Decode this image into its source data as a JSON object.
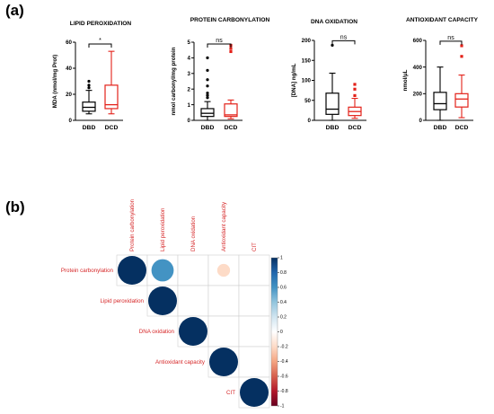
{
  "panel_labels": {
    "a": "(a)",
    "b": "(b)"
  },
  "colors": {
    "dbd": "#000000",
    "dcd": "#e32119",
    "corr_pos": "#053061",
    "corr_neg": "#67001f"
  },
  "chart_data": [
    {
      "type": "boxplot",
      "title": "LIPID PEROXIDATION",
      "ylabel": "MDA (nmol/mg Prot)",
      "ylim": [
        0,
        60
      ],
      "yticks": [
        0,
        20,
        40,
        60
      ],
      "categories": [
        "DBD",
        "DCD"
      ],
      "significance": "*",
      "series": [
        {
          "name": "DBD",
          "min": 5,
          "q1": 7,
          "median": 10,
          "q3": 14,
          "max": 23,
          "outliers": [
            30,
            27,
            25
          ]
        },
        {
          "name": "DCD",
          "min": 5,
          "q1": 9,
          "median": 12,
          "q3": 27,
          "max": 53,
          "outliers": []
        }
      ]
    },
    {
      "type": "boxplot",
      "title": "PROTEIN CARBONYLATION",
      "ylabel": "nmol carbonyl/mg protein",
      "ylim": [
        0,
        5
      ],
      "yticks": [
        0,
        1,
        2,
        3,
        4,
        5
      ],
      "categories": [
        "DBD",
        "DCD"
      ],
      "significance": "ns",
      "series": [
        {
          "name": "DBD",
          "min": 0,
          "q1": 0.25,
          "median": 0.45,
          "q3": 0.75,
          "max": 1.2,
          "outliers": [
            1.45,
            1.6,
            1.75,
            2.2,
            2.6,
            3.2,
            4.0
          ]
        },
        {
          "name": "DCD",
          "min": 0.1,
          "q1": 0.25,
          "median": 0.35,
          "q3": 1.05,
          "max": 1.3,
          "outliers": [
            4.4,
            4.6,
            4.8
          ]
        }
      ]
    },
    {
      "type": "boxplot",
      "title": "DNA OXIDATION",
      "ylabel": "[DNA] ng/mL",
      "ylim": [
        0,
        200
      ],
      "yticks": [
        0,
        50,
        100,
        150,
        200
      ],
      "categories": [
        "DBD",
        "DCD"
      ],
      "significance": "ns",
      "series": [
        {
          "name": "DBD",
          "min": 0,
          "q1": 15,
          "median": 28,
          "q3": 68,
          "max": 118,
          "outliers": [
            188
          ]
        },
        {
          "name": "DCD",
          "min": 5,
          "q1": 12,
          "median": 22,
          "q3": 33,
          "max": 55,
          "outliers": [
            62,
            78,
            90
          ]
        }
      ]
    },
    {
      "type": "boxplot",
      "title": "ANTIOXIDANT CAPACITY",
      "ylabel": "nmol/µL",
      "ylim": [
        0,
        600
      ],
      "yticks": [
        0,
        200,
        400,
        600
      ],
      "categories": [
        "DBD",
        "DCD"
      ],
      "significance": "ns",
      "series": [
        {
          "name": "DBD",
          "min": 0,
          "q1": 80,
          "median": 125,
          "q3": 210,
          "max": 400,
          "outliers": []
        },
        {
          "name": "DCD",
          "min": 20,
          "q1": 100,
          "median": 160,
          "q3": 200,
          "max": 340,
          "outliers": [
            480,
            560
          ]
        }
      ]
    },
    {
      "type": "heatmap",
      "labels": [
        "Protein carbonylation",
        "Lipid peroxidation",
        "DNA oxidation",
        "Antioxidant capacity",
        "CIT"
      ],
      "values": [
        [
          1,
          0.6,
          0.0,
          -0.2,
          0.0
        ],
        [
          0.6,
          1,
          0.0,
          0.0,
          0.0
        ],
        [
          0.0,
          0.0,
          1,
          0.0,
          0.0
        ],
        [
          -0.2,
          0.0,
          0.0,
          1,
          0.0
        ],
        [
          0.0,
          0.0,
          0.0,
          0.0,
          1
        ]
      ],
      "triangle": "upper",
      "colorbar_ticks": [
        1,
        0.8,
        0.6,
        0.4,
        0.2,
        0,
        -0.2,
        -0.4,
        -0.6,
        -0.8,
        -1
      ]
    }
  ]
}
